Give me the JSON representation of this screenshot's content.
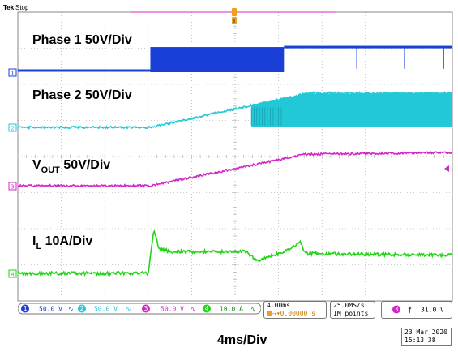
{
  "header": {
    "brand": "Tek",
    "status": "Stop",
    "trigger_marker": "T"
  },
  "colors": {
    "ch1": "#1a3fd6",
    "ch2": "#22c8d8",
    "ch3": "#d424c8",
    "ch4": "#22d416",
    "grid": "#9a9a9a"
  },
  "chart_data": {
    "type": "line",
    "xlabel": "4ms/Div",
    "x_range_ms": [
      0,
      40
    ],
    "y_divisions": 8,
    "series": [
      {
        "name": "Phase 1 50V/Div",
        "channel": "1",
        "color": "#1a3fd6",
        "segments": [
          {
            "from_ms": 0,
            "to_ms": 12.2,
            "level_div": 0.0
          },
          {
            "from_ms": 12.2,
            "to_ms": 24.5,
            "mode": "switching",
            "low_div": 0.0,
            "high_div": 0.65
          },
          {
            "from_ms": 24.5,
            "to_ms": 40,
            "level_div": 0.65
          }
        ],
        "spikes_ms": [
          31.2,
          35.6,
          39.2
        ]
      },
      {
        "name": "Phase 2 50V/Div",
        "channel": "2",
        "color": "#22c8d8",
        "points": [
          [
            0,
            0.0
          ],
          [
            12.2,
            0.0
          ],
          [
            26,
            0.9
          ],
          [
            26.8,
            0.95
          ],
          [
            40,
            0.95
          ]
        ],
        "switching_from_ms": 21.5,
        "switching_high_div": 0.95
      },
      {
        "name": "VOUT 50V/Div",
        "name_main": "V",
        "name_sub": "OUT",
        "name_tail": " 50V/Div",
        "channel": "3",
        "color": "#d424c8",
        "points": [
          [
            0,
            0.0
          ],
          [
            12.2,
            0.0
          ],
          [
            26.5,
            0.87
          ],
          [
            40,
            0.92
          ]
        ]
      },
      {
        "name": "IL 10A/Div",
        "name_main": "I",
        "name_sub": "L",
        "name_tail": " 10A/Div",
        "channel": "4",
        "color": "#22d416",
        "points": [
          [
            0,
            0.0
          ],
          [
            12.0,
            0.0
          ],
          [
            12.5,
            1.2
          ],
          [
            13.0,
            0.7
          ],
          [
            14,
            0.6
          ],
          [
            21,
            0.6
          ],
          [
            22,
            0.35
          ],
          [
            24,
            0.55
          ],
          [
            25.5,
            0.75
          ],
          [
            26,
            0.85
          ],
          [
            26.5,
            0.55
          ],
          [
            40,
            0.5
          ]
        ]
      }
    ]
  },
  "readouts": {
    "ch1": {
      "num": "1",
      "scale": "50.0 V"
    },
    "ch2": {
      "num": "2",
      "scale": "50.0 V"
    },
    "ch3": {
      "num": "3",
      "scale": "50.0 V"
    },
    "ch4": {
      "num": "4",
      "scale": "10.0 A"
    },
    "timebase": "4.00ms",
    "position": "0.00000 s",
    "sample_rate": "25.0MS/s",
    "record_length": "1M points",
    "trigger_channel": "3",
    "trigger_level": "31.0 V"
  },
  "footer": {
    "timebase_label": "4ms/Div",
    "date": "23 Mar 2020",
    "time": "15:13:38"
  }
}
